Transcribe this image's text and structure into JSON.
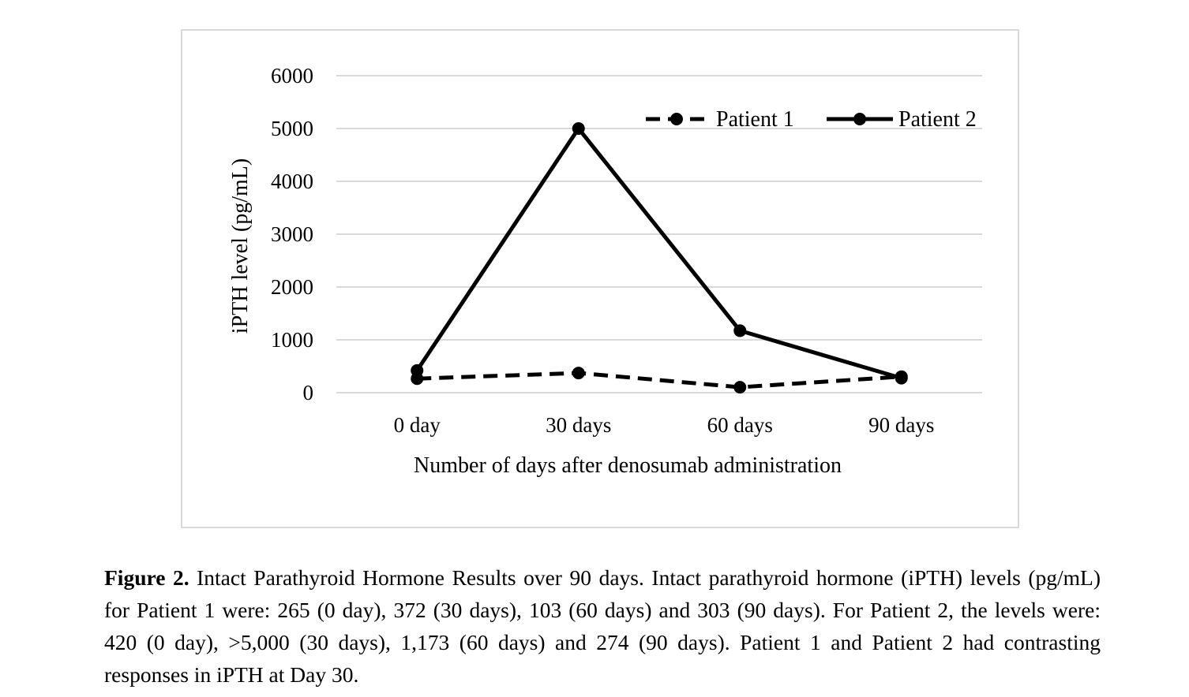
{
  "chart_data": {
    "type": "line",
    "categories": [
      "0 day",
      "30 days",
      "60 days",
      "90 days"
    ],
    "series": [
      {
        "name": "Patient 1",
        "values": [
          265,
          372,
          103,
          303
        ],
        "style": "dashed",
        "color": "#000000"
      },
      {
        "name": "Patient 2",
        "values": [
          420,
          5000,
          1173,
          274
        ],
        "style": "solid",
        "color": "#000000"
      }
    ],
    "xlabel": "Number of days after denosumab administration",
    "ylabel": "iPTH level (pg/mL)",
    "ylim": [
      0,
      6000
    ],
    "yticks": [
      "0",
      "1000",
      "2000",
      "3000",
      "4000",
      "5000",
      "6000"
    ],
    "grid": true,
    "gridColor": "#d9d9d9",
    "legend_position": "top-right"
  },
  "caption": {
    "label": "Figure 2.",
    "text": " Intact Parathyroid Hormone Results over 90 days. Intact parathyroid hormone (iPTH) levels (pg/mL) for Patient 1 were: 265 (0 day), 372 (30 days), 103 (60 days) and 303 (90 days). For Patient 2, the levels were: 420 (0 day), >5,000 (30 days), 1,173 (60 days) and 274 (90 days). Patient 1 and Patient 2 had contrasting responses in iPTH at Day 30."
  }
}
